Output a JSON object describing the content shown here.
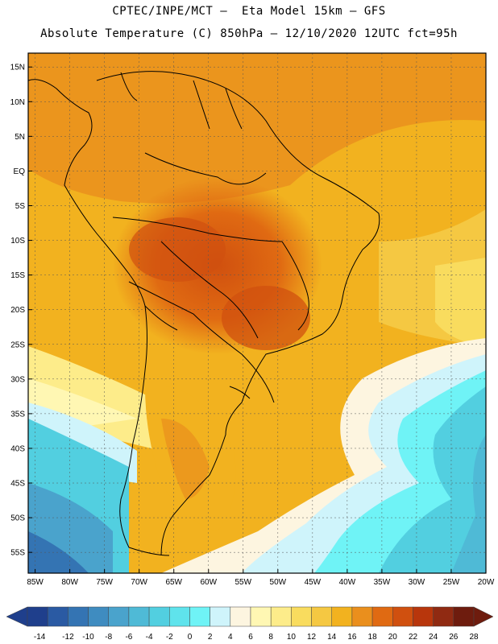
{
  "header": {
    "line1": "CPTEC/INPE/MCT —  Eta Model 15km — GFS",
    "line2": "Absolute Temperature (C) 850hPa — 12/10/2020 12UTC fct=95h"
  },
  "map": {
    "lon_range": [
      -86,
      -20
    ],
    "lat_range": [
      -58,
      17
    ],
    "lat_labels": [
      "15N",
      "10N",
      "5N",
      "EQ",
      "5S",
      "10S",
      "15S",
      "20S",
      "25S",
      "30S",
      "35S",
      "40S",
      "45S",
      "50S",
      "55S"
    ],
    "lat_values": [
      15,
      10,
      5,
      0,
      -5,
      -10,
      -15,
      -20,
      -25,
      -30,
      -35,
      -40,
      -45,
      -50,
      -55
    ],
    "lon_labels": [
      "85W",
      "80W",
      "75W",
      "70W",
      "65W",
      "60W",
      "55W",
      "50W",
      "45W",
      "40W",
      "35W",
      "30W",
      "25W",
      "20W"
    ],
    "lon_values": [
      -85,
      -80,
      -75,
      -70,
      -65,
      -60,
      -55,
      -50,
      -45,
      -40,
      -35,
      -30,
      -25,
      -20
    ]
  },
  "colorbar": {
    "labels": [
      "-14",
      "-12",
      "-10",
      "-8",
      "-6",
      "-4",
      "-2",
      "0",
      "2",
      "4",
      "6",
      "8",
      "10",
      "12",
      "14",
      "16",
      "18",
      "20",
      "22",
      "24",
      "26",
      "28"
    ],
    "colors": [
      "#1f3f8c",
      "#2a5aa3",
      "#3474b3",
      "#3f8cc0",
      "#4aa3cc",
      "#4fbad6",
      "#52cfe0",
      "#5fe3ec",
      "#6ff3f6",
      "#cff4fb",
      "#fdf5e0",
      "#fff7b3",
      "#fdec8a",
      "#f9dc5e",
      "#f5c842",
      "#f2b21f",
      "#ea8f1d",
      "#e06a12",
      "#d0500f",
      "#b8360c",
      "#902a12",
      "#6e1c0e"
    ]
  }
}
